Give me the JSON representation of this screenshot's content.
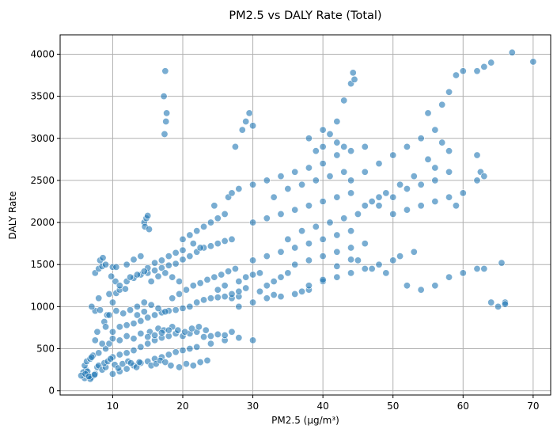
{
  "chart_data": {
    "type": "scatter",
    "title": "PM2.5 vs DALY Rate (Total)",
    "xlabel": "PM2.5 (µg/m³)",
    "ylabel": "DALY Rate",
    "xlim": [
      2.5,
      72.5
    ],
    "ylim": [
      -50,
      4230
    ],
    "xticks": [
      10,
      20,
      30,
      40,
      50,
      60,
      70
    ],
    "yticks": [
      0,
      500,
      1000,
      1500,
      2000,
      2500,
      3000,
      3500,
      4000
    ],
    "grid": true,
    "color": "#1f77b4",
    "point_alpha": 0.6,
    "points": [
      [
        6,
        150
      ],
      [
        6.5,
        180
      ],
      [
        7,
        160
      ],
      [
        7.5,
        200
      ],
      [
        6.2,
        250
      ],
      [
        7.8,
        280
      ],
      [
        8,
        300
      ],
      [
        8.5,
        250
      ],
      [
        9,
        280
      ],
      [
        6.8,
        140
      ],
      [
        7.2,
        420
      ],
      [
        8,
        450
      ],
      [
        9,
        500
      ],
      [
        8.5,
        560
      ],
      [
        7.5,
        600
      ],
      [
        9.5,
        560
      ],
      [
        10,
        620
      ],
      [
        7.8,
        700
      ],
      [
        8.8,
        820
      ],
      [
        9,
        760
      ],
      [
        7.5,
        950
      ],
      [
        8.2,
        960
      ],
      [
        9.2,
        900
      ],
      [
        7,
        1000
      ],
      [
        10,
        1050
      ],
      [
        8,
        1100
      ],
      [
        9.5,
        1150
      ],
      [
        10.5,
        1160
      ],
      [
        11,
        1200
      ],
      [
        11.8,
        1210
      ],
      [
        7.5,
        1400
      ],
      [
        8,
        1450
      ],
      [
        8.5,
        1480
      ],
      [
        9,
        1500
      ],
      [
        8.2,
        1550
      ],
      [
        8.6,
        1580
      ],
      [
        10,
        1470
      ],
      [
        10.5,
        1470
      ],
      [
        9.8,
        1360
      ],
      [
        10.4,
        1300
      ],
      [
        10,
        200
      ],
      [
        11,
        230
      ],
      [
        12,
        260
      ],
      [
        13,
        300
      ],
      [
        14,
        330
      ],
      [
        15,
        350
      ],
      [
        16,
        380
      ],
      [
        17,
        400
      ],
      [
        18,
        430
      ],
      [
        19,
        460
      ],
      [
        20,
        480
      ],
      [
        21,
        500
      ],
      [
        22,
        520
      ],
      [
        24,
        560
      ],
      [
        26,
        600
      ],
      [
        28,
        630
      ],
      [
        30,
        600
      ],
      [
        10,
        400
      ],
      [
        11,
        430
      ],
      [
        12,
        450
      ],
      [
        13,
        480
      ],
      [
        14,
        520
      ],
      [
        15,
        560
      ],
      [
        16,
        600
      ],
      [
        17,
        630
      ],
      [
        18,
        650
      ],
      [
        19,
        680
      ],
      [
        20,
        650
      ],
      [
        21,
        680
      ],
      [
        22,
        700
      ],
      [
        23,
        640
      ],
      [
        24,
        650
      ],
      [
        25,
        670
      ],
      [
        26,
        660
      ],
      [
        27,
        700
      ],
      [
        10,
        700
      ],
      [
        11,
        760
      ],
      [
        12,
        780
      ],
      [
        13,
        800
      ],
      [
        14,
        830
      ],
      [
        15,
        870
      ],
      [
        16,
        900
      ],
      [
        17,
        930
      ],
      [
        18,
        950
      ],
      [
        19,
        960
      ],
      [
        20,
        980
      ],
      [
        21,
        1000
      ],
      [
        22,
        1050
      ],
      [
        23,
        1080
      ],
      [
        24,
        1100
      ],
      [
        25,
        1110
      ],
      [
        26,
        1120
      ],
      [
        27,
        1100
      ],
      [
        28,
        1120
      ],
      [
        11,
        1250
      ],
      [
        12,
        1300
      ],
      [
        13,
        1340
      ],
      [
        14,
        1380
      ],
      [
        15,
        1400
      ],
      [
        16,
        1430
      ],
      [
        17,
        1460
      ],
      [
        18,
        1490
      ],
      [
        19,
        1510
      ],
      [
        20,
        1560
      ],
      [
        21,
        1600
      ],
      [
        22,
        1650
      ],
      [
        23,
        1700
      ],
      [
        24,
        1720
      ],
      [
        25,
        1750
      ],
      [
        26,
        1780
      ],
      [
        27,
        1800
      ],
      [
        12,
        1500
      ],
      [
        13,
        1560
      ],
      [
        14,
        1600
      ],
      [
        15,
        1460
      ],
      [
        16,
        1520
      ],
      [
        17,
        1550
      ],
      [
        18,
        1600
      ],
      [
        19,
        1640
      ],
      [
        20,
        1670
      ],
      [
        14.5,
        2000
      ],
      [
        14.8,
        2050
      ],
      [
        15,
        2080
      ],
      [
        14.6,
        1950
      ],
      [
        15.2,
        1920
      ],
      [
        28,
        1300
      ],
      [
        29,
        1350
      ],
      [
        30,
        1380
      ],
      [
        31,
        1400
      ],
      [
        32,
        1250
      ],
      [
        33,
        1300
      ],
      [
        34,
        1350
      ],
      [
        35,
        1400
      ],
      [
        28,
        1000
      ],
      [
        30,
        1050
      ],
      [
        32,
        1100
      ],
      [
        34,
        1120
      ],
      [
        36,
        1150
      ],
      [
        37,
        1180
      ],
      [
        38,
        1200
      ],
      [
        30,
        1550
      ],
      [
        32,
        1600
      ],
      [
        34,
        1650
      ],
      [
        36,
        1700
      ],
      [
        38,
        1750
      ],
      [
        40,
        1800
      ],
      [
        42,
        1850
      ],
      [
        44,
        1900
      ],
      [
        30,
        2000
      ],
      [
        32,
        2050
      ],
      [
        34,
        2100
      ],
      [
        36,
        2150
      ],
      [
        38,
        2200
      ],
      [
        40,
        2250
      ],
      [
        42,
        2300
      ],
      [
        44,
        2350
      ],
      [
        28,
        2400
      ],
      [
        30,
        2450
      ],
      [
        32,
        2500
      ],
      [
        34,
        2550
      ],
      [
        36,
        2600
      ],
      [
        38,
        2650
      ],
      [
        40,
        2700
      ],
      [
        42,
        2800
      ],
      [
        44,
        2850
      ],
      [
        46,
        2900
      ],
      [
        27.5,
        2900
      ],
      [
        28.5,
        3100
      ],
      [
        29,
        3200
      ],
      [
        29.5,
        3300
      ],
      [
        30,
        3150
      ],
      [
        17.5,
        3800
      ],
      [
        17.3,
        3500
      ],
      [
        17.7,
        3300
      ],
      [
        17.6,
        3200
      ],
      [
        17.4,
        3050
      ],
      [
        36,
        1500
      ],
      [
        38,
        1550
      ],
      [
        40,
        1600
      ],
      [
        42,
        1650
      ],
      [
        44,
        1700
      ],
      [
        46,
        1750
      ],
      [
        40,
        1300
      ],
      [
        42,
        1350
      ],
      [
        44,
        1400
      ],
      [
        46,
        1450
      ],
      [
        48,
        1500
      ],
      [
        50,
        1550
      ],
      [
        38,
        3000
      ],
      [
        40,
        3100
      ],
      [
        42,
        3200
      ],
      [
        43,
        3450
      ],
      [
        44,
        3650
      ],
      [
        44.5,
        3700
      ],
      [
        44.3,
        3780
      ],
      [
        44,
        2500
      ],
      [
        46,
        2600
      ],
      [
        48,
        2700
      ],
      [
        50,
        2800
      ],
      [
        52,
        2900
      ],
      [
        54,
        3000
      ],
      [
        56,
        3100
      ],
      [
        48,
        2200
      ],
      [
        50,
        2300
      ],
      [
        52,
        2400
      ],
      [
        54,
        2450
      ],
      [
        56,
        2500
      ],
      [
        58,
        2600
      ],
      [
        50,
        2100
      ],
      [
        52,
        2150
      ],
      [
        54,
        2200
      ],
      [
        56,
        2250
      ],
      [
        58,
        2300
      ],
      [
        60,
        2350
      ],
      [
        52,
        1250
      ],
      [
        54,
        1200
      ],
      [
        56,
        1250
      ],
      [
        58,
        1350
      ],
      [
        60,
        1400
      ],
      [
        62,
        1450
      ],
      [
        63,
        1450
      ],
      [
        55,
        3300
      ],
      [
        57,
        3400
      ],
      [
        58,
        3550
      ],
      [
        59,
        3750
      ],
      [
        60,
        3800
      ],
      [
        62,
        3800
      ],
      [
        63,
        3850
      ],
      [
        64,
        3900
      ],
      [
        67,
        4020
      ],
      [
        70,
        3910
      ],
      [
        62,
        2800
      ],
      [
        62.5,
        2600
      ],
      [
        63,
        2550
      ],
      [
        62,
        2500
      ],
      [
        64,
        1050
      ],
      [
        65,
        1000
      ],
      [
        66,
        1050
      ],
      [
        66,
        1030
      ],
      [
        65.5,
        1520
      ],
      [
        55,
        2750
      ],
      [
        57,
        2950
      ],
      [
        58,
        2850
      ],
      [
        56,
        2650
      ],
      [
        59,
        2200
      ],
      [
        6,
        300
      ],
      [
        6.3,
        350
      ],
      [
        6.8,
        380
      ],
      [
        7,
        400
      ],
      [
        5.8,
        220
      ],
      [
        6.4,
        230
      ],
      [
        5.5,
        180
      ],
      [
        6.1,
        200
      ],
      [
        6.6,
        170
      ],
      [
        7.4,
        190
      ],
      [
        8.8,
        330
      ],
      [
        9.3,
        350
      ],
      [
        9.7,
        380
      ],
      [
        10.3,
        310
      ],
      [
        10.8,
        270
      ],
      [
        11.4,
        320
      ],
      [
        12.2,
        350
      ],
      [
        12.6,
        330
      ],
      [
        13.4,
        280
      ],
      [
        13.8,
        340
      ],
      [
        15.5,
        300
      ],
      [
        16.2,
        320
      ],
      [
        16.8,
        360
      ],
      [
        17.5,
        340
      ],
      [
        18.3,
        300
      ],
      [
        19.5,
        280
      ],
      [
        20.5,
        320
      ],
      [
        21.5,
        300
      ],
      [
        22.5,
        340
      ],
      [
        23.5,
        360
      ],
      [
        15.3,
        700
      ],
      [
        16.5,
        740
      ],
      [
        17.3,
        720
      ],
      [
        18.5,
        760
      ],
      [
        19.3,
        720
      ],
      [
        20.3,
        700
      ],
      [
        21.3,
        740
      ],
      [
        22.3,
        760
      ],
      [
        23.3,
        720
      ],
      [
        13.5,
        1000
      ],
      [
        14.5,
        1050
      ],
      [
        15.5,
        1020
      ],
      [
        16.5,
        980
      ],
      [
        17.5,
        940
      ],
      [
        18.5,
        1100
      ],
      [
        19.5,
        1150
      ],
      [
        20.5,
        1200
      ],
      [
        21.5,
        1250
      ],
      [
        22.5,
        1280
      ],
      [
        23.5,
        1320
      ],
      [
        24.5,
        1350
      ],
      [
        25.5,
        1380
      ],
      [
        26.5,
        1420
      ],
      [
        27.5,
        1450
      ],
      [
        12.5,
        1350
      ],
      [
        13.5,
        1380
      ],
      [
        14.5,
        1420
      ],
      [
        15.5,
        1300
      ],
      [
        16.5,
        1360
      ],
      [
        17.5,
        1400
      ],
      [
        18.5,
        1350
      ],
      [
        19.5,
        1300
      ],
      [
        24,
        2000
      ],
      [
        25,
        2050
      ],
      [
        26,
        2100
      ],
      [
        24.5,
        2200
      ],
      [
        26.5,
        2300
      ],
      [
        27,
        2350
      ],
      [
        20,
        1800
      ],
      [
        21,
        1850
      ],
      [
        22,
        1900
      ],
      [
        23,
        1950
      ],
      [
        21.5,
        1750
      ],
      [
        22.5,
        1700
      ],
      [
        33,
        2300
      ],
      [
        35,
        2400
      ],
      [
        37,
        2450
      ],
      [
        39,
        2500
      ],
      [
        41,
        2550
      ],
      [
        43,
        2600
      ],
      [
        35,
        1800
      ],
      [
        37,
        1900
      ],
      [
        39,
        1950
      ],
      [
        41,
        2000
      ],
      [
        43,
        2050
      ],
      [
        45,
        2100
      ],
      [
        46,
        2200
      ],
      [
        47,
        2250
      ],
      [
        48,
        2300
      ],
      [
        49,
        2350
      ],
      [
        51,
        2450
      ],
      [
        53,
        2550
      ],
      [
        47,
        1450
      ],
      [
        49,
        1400
      ],
      [
        51,
        1600
      ],
      [
        53,
        1650
      ],
      [
        45,
        1550
      ],
      [
        38,
        1250
      ],
      [
        40,
        1320
      ],
      [
        42,
        1480
      ],
      [
        44,
        1560
      ],
      [
        40,
        2900
      ],
      [
        42,
        2950
      ],
      [
        39,
        2850
      ],
      [
        41,
        3050
      ],
      [
        43,
        2900
      ],
      [
        25,
        1200
      ],
      [
        26,
        1250
      ],
      [
        27,
        1150
      ],
      [
        28,
        1180
      ],
      [
        29,
        1220
      ],
      [
        31,
        1180
      ],
      [
        33,
        1140
      ],
      [
        11,
        600
      ],
      [
        12,
        650
      ],
      [
        13,
        620
      ],
      [
        14,
        680
      ],
      [
        15,
        640
      ],
      [
        16,
        660
      ],
      [
        17,
        690
      ],
      [
        18,
        720
      ],
      [
        9.5,
        900
      ],
      [
        10.5,
        950
      ],
      [
        11.5,
        920
      ],
      [
        12.5,
        960
      ],
      [
        13.5,
        900
      ],
      [
        14.5,
        940
      ]
    ]
  }
}
